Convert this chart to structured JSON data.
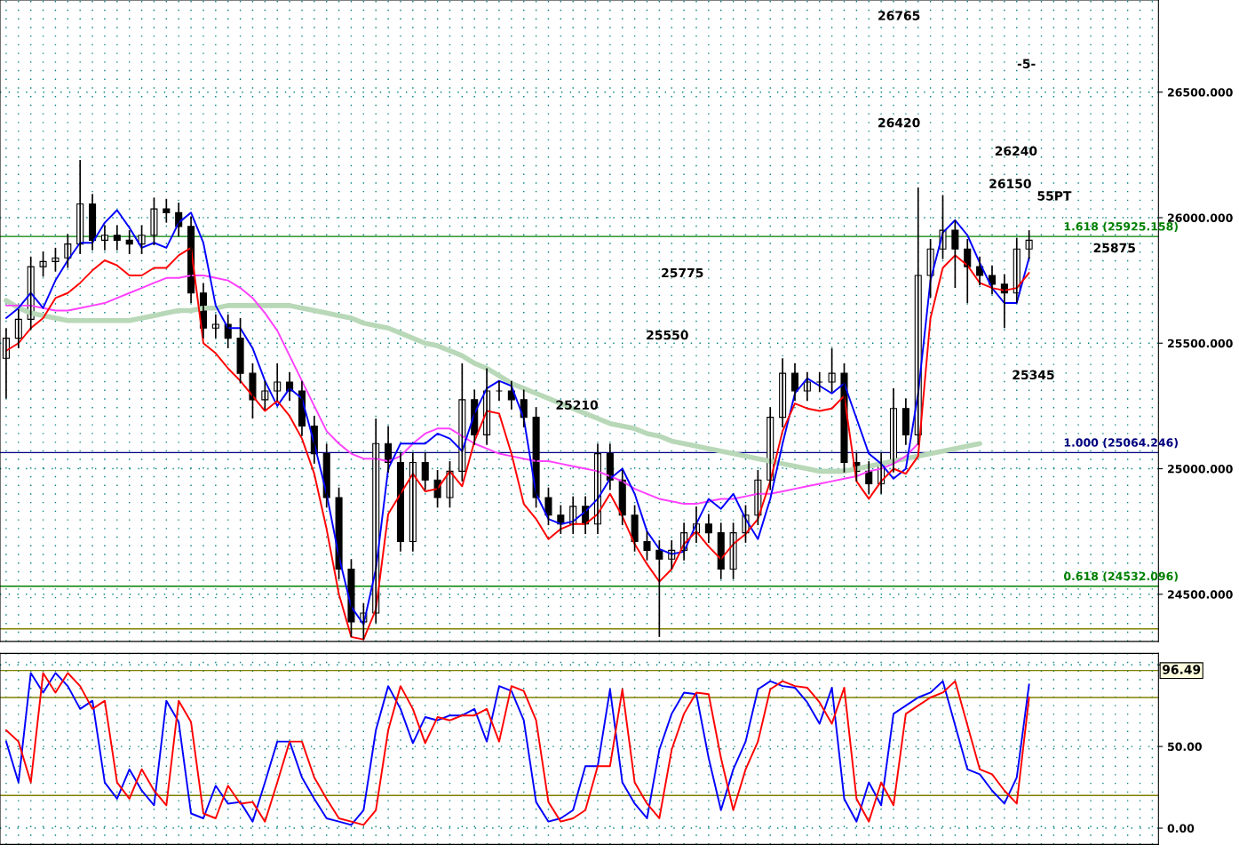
{
  "chart_data": [
    {
      "type": "candlestick",
      "tick_labels": "y",
      "grid": true,
      "categories": [
        null,
        null,
        null,
        null,
        null,
        null,
        null,
        null,
        null,
        null,
        null,
        null,
        null,
        null,
        null,
        null,
        null,
        null,
        null,
        null,
        null,
        null,
        null,
        null,
        null,
        null,
        null,
        null,
        null,
        null,
        null,
        null,
        null,
        null,
        null,
        null,
        null,
        null,
        null,
        null,
        null,
        null,
        null,
        null,
        null,
        null,
        null,
        null,
        null,
        null,
        null,
        null,
        null,
        null,
        null,
        null,
        null,
        null,
        null,
        null,
        null,
        null,
        null,
        null,
        null,
        null,
        null,
        null,
        null,
        null,
        null,
        null,
        null,
        null,
        null,
        null,
        null,
        null,
        null,
        null,
        null,
        null,
        null,
        null,
        null,
        null,
        null,
        null,
        null,
        null,
        null,
        null,
        null,
        null
      ],
      "ohlc": [
        [
          25440,
          25560,
          25280,
          25520
        ],
        [
          25520,
          25635,
          25480,
          25595
        ],
        [
          25595,
          25845,
          25555,
          25805
        ],
        [
          25805,
          25865,
          25765,
          25825
        ],
        [
          25825,
          25880,
          25785,
          25840
        ],
        [
          25840,
          25935,
          25800,
          25895
        ],
        [
          25895,
          26230,
          25855,
          26055
        ],
        [
          26055,
          26095,
          25870,
          25910
        ],
        [
          25910,
          25970,
          25870,
          25930
        ],
        [
          25930,
          25970,
          25870,
          25910
        ],
        [
          25910,
          25950,
          25855,
          25895
        ],
        [
          25895,
          25970,
          25855,
          25930
        ],
        [
          25930,
          26080,
          25890,
          26035
        ],
        [
          26035,
          26075,
          25980,
          26020
        ],
        [
          26020,
          26060,
          25925,
          25965
        ],
        [
          25965,
          26005,
          25660,
          25700
        ],
        [
          25700,
          25740,
          25520,
          25560
        ],
        [
          25560,
          25615,
          25520,
          25575
        ],
        [
          25575,
          25615,
          25480,
          25520
        ],
        [
          25520,
          25600,
          25340,
          25380
        ],
        [
          25380,
          25420,
          25200,
          25275
        ],
        [
          25275,
          25350,
          25235,
          25310
        ],
        [
          25310,
          25420,
          25270,
          25345
        ],
        [
          25345,
          25385,
          25270,
          25310
        ],
        [
          25310,
          25350,
          25130,
          25170
        ],
        [
          25170,
          25210,
          25020,
          25060
        ],
        [
          25060,
          25100,
          24845,
          24885
        ],
        [
          24885,
          24925,
          24560,
          24600
        ],
        [
          24600,
          24640,
          24330,
          24390
        ],
        [
          24390,
          24465,
          24320,
          24425
        ],
        [
          24425,
          25200,
          24385,
          25100
        ],
        [
          25100,
          25170,
          24985,
          25025
        ],
        [
          25025,
          25065,
          24670,
          24710
        ],
        [
          24710,
          25065,
          24670,
          25025
        ],
        [
          25025,
          25065,
          24915,
          24955
        ],
        [
          24955,
          24995,
          24845,
          24885
        ],
        [
          24885,
          25030,
          24845,
          24990
        ],
        [
          24990,
          25420,
          24950,
          25275
        ],
        [
          25275,
          25315,
          25095,
          25135
        ],
        [
          25135,
          25400,
          25095,
          25310
        ],
        [
          25310,
          25350,
          25270,
          25310
        ],
        [
          25310,
          25350,
          25235,
          25275
        ],
        [
          25275,
          25315,
          25165,
          25205
        ],
        [
          25205,
          25245,
          24845,
          24885
        ],
        [
          24885,
          24925,
          24775,
          24815
        ],
        [
          24815,
          24855,
          24740,
          24780
        ],
        [
          24780,
          24890,
          24740,
          24850
        ],
        [
          24850,
          24890,
          24740,
          24780
        ],
        [
          24780,
          25100,
          24740,
          25060
        ],
        [
          25060,
          25100,
          24915,
          24955
        ],
        [
          24955,
          24995,
          24775,
          24815
        ],
        [
          24815,
          24855,
          24670,
          24710
        ],
        [
          24710,
          24750,
          24635,
          24675
        ],
        [
          24675,
          24715,
          24330,
          24640
        ],
        [
          24640,
          24715,
          24600,
          24675
        ],
        [
          24675,
          24785,
          24635,
          24745
        ],
        [
          24745,
          24850,
          24705,
          24780
        ],
        [
          24780,
          24820,
          24705,
          24745
        ],
        [
          24745,
          24785,
          24560,
          24600
        ],
        [
          24600,
          24785,
          24560,
          24745
        ],
        [
          24745,
          24855,
          24705,
          24815
        ],
        [
          24815,
          24995,
          24775,
          24955
        ],
        [
          24955,
          25245,
          24915,
          25205
        ],
        [
          25205,
          25440,
          25165,
          25380
        ],
        [
          25380,
          25420,
          25270,
          25310
        ],
        [
          25310,
          25385,
          25270,
          25345
        ],
        [
          25345,
          25385,
          25305,
          25345
        ],
        [
          25345,
          25480,
          25305,
          25380
        ],
        [
          25380,
          25420,
          24985,
          25025
        ],
        [
          25025,
          25065,
          24950,
          24990
        ],
        [
          24990,
          25030,
          24900,
          24940
        ],
        [
          24940,
          25065,
          24900,
          25025
        ],
        [
          25025,
          25320,
          24985,
          25240
        ],
        [
          25240,
          25280,
          25095,
          25135
        ],
        [
          25135,
          26120,
          25095,
          25770
        ],
        [
          25770,
          25915,
          25680,
          25875
        ],
        [
          25875,
          26090,
          25835,
          25950
        ],
        [
          25950,
          25990,
          25720,
          25875
        ],
        [
          25875,
          25915,
          25660,
          25805
        ],
        [
          25805,
          25845,
          25730,
          25770
        ],
        [
          25770,
          25810,
          25695,
          25735
        ],
        [
          25735,
          25775,
          25560,
          25700
        ],
        [
          25700,
          25920,
          25660,
          25875
        ],
        [
          25875,
          25950,
          25835,
          25910
        ],
        null,
        null,
        null,
        null,
        null,
        null,
        null,
        null,
        null,
        null
      ],
      "series": [
        {
          "type": "line",
          "color": "#b8d8b8",
          "values": [
            25670,
            25640,
            25620,
            25610,
            25600,
            25590,
            25590,
            25590,
            25590,
            25590,
            25590,
            25600,
            25610,
            25620,
            25630,
            25630,
            25640,
            25640,
            25650,
            25650,
            25650,
            25650,
            25650,
            25650,
            25640,
            25630,
            25620,
            25610,
            25600,
            25580,
            25570,
            25560,
            25540,
            25520,
            25500,
            25490,
            25470,
            25450,
            25420,
            25400,
            25370,
            25340,
            25320,
            25300,
            25280,
            25260,
            25240,
            25220,
            25200,
            25180,
            25170,
            25160,
            25140,
            25130,
            25110,
            25100,
            25090,
            25080,
            25070,
            25060,
            25050,
            25040,
            25030,
            25020,
            25010,
            25000,
            24990,
            24990,
            24990,
            25000,
            25010,
            25020,
            25030,
            25040,
            25050,
            25060,
            25070,
            25080,
            25090,
            25100,
            null,
            null,
            null,
            null,
            null,
            null,
            null,
            null,
            null,
            null,
            null,
            null,
            null,
            null
          ]
        },
        {
          "type": "line",
          "color": "#ff40ff",
          "values": [
            25650,
            25650,
            25650,
            25640,
            25630,
            25630,
            25640,
            25650,
            25660,
            25680,
            25700,
            25720,
            25740,
            25760,
            25760,
            25770,
            25770,
            25760,
            25750,
            25720,
            25680,
            25620,
            25550,
            25450,
            25350,
            25250,
            25150,
            25100,
            25060,
            25040,
            25040,
            25030,
            25050,
            25100,
            25140,
            25160,
            25160,
            25130,
            25100,
            25080,
            25060,
            25050,
            25040,
            25030,
            25030,
            25020,
            25010,
            25000,
            24990,
            24970,
            24950,
            24920,
            24900,
            24880,
            24870,
            24860,
            24860,
            24870,
            24880,
            24880,
            24890,
            24900,
            24900,
            24910,
            24920,
            24930,
            24940,
            24950,
            24960,
            24970,
            24990,
            25000,
            25020,
            25050,
            25100,
            null,
            null,
            null,
            null,
            null,
            null,
            null,
            null,
            null,
            null,
            null,
            null,
            null,
            null,
            null,
            null,
            null,
            null,
            null
          ]
        },
        {
          "type": "line",
          "color": "#0000ff",
          "values": [
            25600,
            25640,
            25700,
            25640,
            25750,
            25830,
            25900,
            25900,
            25980,
            26030,
            25960,
            25880,
            25900,
            25880,
            25980,
            26020,
            25900,
            25650,
            25560,
            25560,
            25480,
            25350,
            25250,
            25320,
            25280,
            25100,
            24900,
            24650,
            24450,
            24380,
            24600,
            25000,
            25100,
            25100,
            25100,
            25140,
            25120,
            25070,
            25220,
            25320,
            25350,
            25330,
            25200,
            24900,
            24800,
            24780,
            24790,
            24830,
            24880,
            24960,
            25000,
            24900,
            24750,
            24680,
            24660,
            24670,
            24780,
            24880,
            24840,
            24900,
            24800,
            24720,
            24880,
            25100,
            25300,
            25360,
            25330,
            25300,
            25340,
            25200,
            25060,
            25020,
            24960,
            25000,
            25300,
            25750,
            25940,
            25990,
            25930,
            25820,
            25720,
            25660,
            25660,
            25840,
            null,
            null,
            null,
            null,
            null,
            null,
            null,
            null,
            null,
            null
          ]
        },
        {
          "type": "line",
          "color": "#ff0000",
          "values": [
            25470,
            25500,
            25560,
            25600,
            25680,
            25700,
            25740,
            25790,
            25830,
            25810,
            25770,
            25770,
            25800,
            25800,
            25850,
            25880,
            25500,
            25460,
            25400,
            25350,
            25290,
            25230,
            25270,
            25210,
            25120,
            24980,
            24760,
            24500,
            24330,
            24320,
            24440,
            24820,
            24900,
            24980,
            24910,
            24920,
            24990,
            24930,
            25110,
            25230,
            25220,
            25060,
            24860,
            24800,
            24720,
            24760,
            24780,
            24780,
            24820,
            24900,
            24810,
            24700,
            24620,
            24550,
            24600,
            24700,
            24750,
            24690,
            24640,
            24700,
            24740,
            24800,
            24950,
            25150,
            25260,
            25240,
            25230,
            25240,
            25290,
            24950,
            24880,
            24950,
            25000,
            24980,
            25050,
            25600,
            25800,
            25850,
            25810,
            25740,
            25720,
            25710,
            25720,
            25780,
            null,
            null,
            null,
            null,
            null,
            null,
            null,
            null,
            null,
            null
          ]
        }
      ],
      "ylim": [
        24312,
        26867
      ],
      "yticks": [
        {
          "value": 24500,
          "label": "24500.000"
        },
        {
          "value": 25000,
          "label": "25000.000"
        },
        {
          "value": 25500,
          "label": "25500.000"
        },
        {
          "value": 26000,
          "label": "26000.000"
        },
        {
          "value": 26500,
          "label": "26500.000"
        }
      ],
      "ref_lines": [
        {
          "axis": "y",
          "value": 25925.158,
          "label": "1.618 (25925.158)",
          "color": "#008000"
        },
        {
          "axis": "y",
          "value": 25064.246,
          "label": "1.000 (25064.246)",
          "color": "#000080"
        },
        {
          "axis": "y",
          "value": 24532.096,
          "label": "0.618 (24532.096)",
          "color": "#008000"
        },
        {
          "axis": "y",
          "value": 24362,
          "color": "#808000"
        }
      ],
      "annotations": [
        "26765",
        "-5-",
        "26420",
        "26240",
        "26150",
        "55PT",
        "25875",
        "25775",
        "25550",
        "25345",
        "25210"
      ]
    },
    {
      "type": "line",
      "tick_labels": "y",
      "grid": true,
      "categories": [
        null,
        null,
        null,
        null,
        null,
        null,
        null,
        null,
        null,
        null,
        null,
        null,
        null,
        null,
        null,
        null,
        null,
        null,
        null,
        null,
        null,
        null,
        null,
        null,
        null,
        null,
        null,
        null,
        null,
        null,
        null,
        null,
        null,
        null,
        null,
        null,
        null,
        null,
        null,
        null,
        null,
        null,
        null,
        null,
        null,
        null,
        null,
        null,
        null,
        null,
        null,
        null,
        null,
        null,
        null,
        null,
        null,
        null,
        null,
        null,
        null,
        null,
        null,
        null,
        null,
        null,
        null,
        null,
        null,
        null,
        null,
        null,
        null,
        null,
        null,
        null,
        null,
        null,
        null,
        null,
        null,
        null,
        null,
        null,
        null,
        null,
        null,
        null,
        null,
        null,
        null,
        null,
        null,
        null
      ],
      "series": [
        {
          "color": "#0000ff",
          "values": [
            53,
            28,
            95,
            83,
            95,
            87,
            73,
            78,
            28,
            18,
            36,
            23,
            14,
            78,
            65,
            9,
            6,
            26,
            15,
            16,
            4,
            28,
            53,
            53,
            31,
            18,
            6,
            4,
            2,
            11,
            60,
            87,
            73,
            52,
            68,
            66,
            69,
            69,
            73,
            53,
            87,
            84,
            66,
            16,
            4,
            6,
            11,
            38,
            38,
            85,
            28,
            15,
            6,
            48,
            70,
            83,
            82,
            43,
            11,
            36,
            53,
            85,
            90,
            87,
            86,
            77,
            64,
            86,
            18,
            4,
            28,
            14,
            70,
            75,
            80,
            83,
            90,
            63,
            36,
            33,
            23,
            15,
            31,
            88,
            null,
            null,
            null,
            null,
            null,
            null,
            null,
            null,
            null,
            null
          ]
        },
        {
          "color": "#ff0000",
          "values": [
            60,
            53,
            28,
            95,
            83,
            95,
            87,
            73,
            78,
            28,
            18,
            36,
            23,
            14,
            78,
            65,
            9,
            6,
            26,
            15,
            16,
            4,
            28,
            53,
            53,
            31,
            18,
            6,
            4,
            2,
            11,
            60,
            87,
            73,
            52,
            68,
            66,
            69,
            69,
            73,
            53,
            87,
            84,
            66,
            16,
            4,
            6,
            11,
            38,
            38,
            85,
            28,
            15,
            6,
            48,
            70,
            83,
            82,
            43,
            11,
            36,
            53,
            85,
            90,
            87,
            86,
            77,
            64,
            86,
            18,
            4,
            28,
            14,
            70,
            75,
            80,
            83,
            90,
            63,
            36,
            33,
            23,
            15,
            80,
            null,
            null,
            null,
            null,
            null,
            null,
            null,
            null,
            null,
            null
          ]
        }
      ],
      "ylim": [
        -10,
        107
      ],
      "yticks": [
        {
          "value": 0,
          "label": "0.00"
        },
        {
          "value": 50,
          "label": "50.00"
        },
        {
          "value": 100,
          "label": null
        }
      ],
      "ref_lines": [
        {
          "axis": "y",
          "value": 96.49,
          "color": "#808000"
        },
        {
          "axis": "y",
          "value": 80,
          "color": "#808000"
        },
        {
          "axis": "y",
          "value": 20,
          "color": "#808000"
        }
      ],
      "annotations": [
        "96.49"
      ]
    }
  ]
}
